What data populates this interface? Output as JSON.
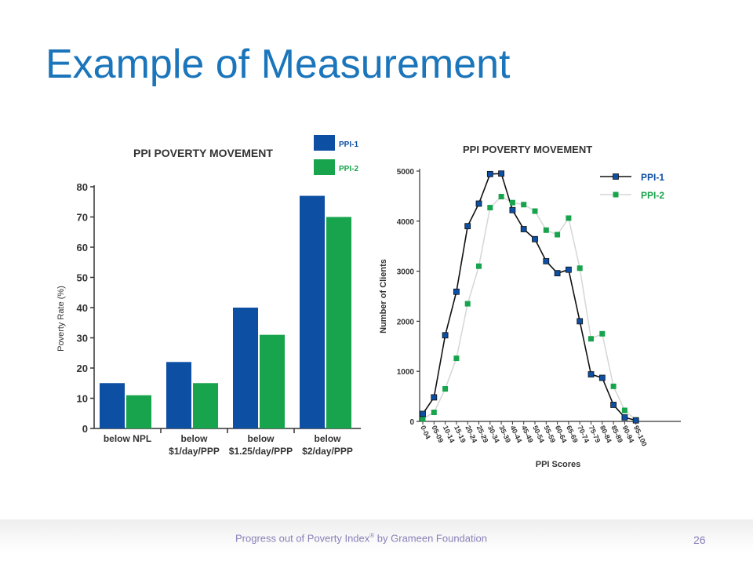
{
  "slide": {
    "title": "Example of Measurement",
    "footer": {
      "prefix": "Progress out of Poverty Index",
      "registered": "®",
      "suffix": " by Grameen Foundation"
    },
    "page_number": "26"
  },
  "colors": {
    "title": "#1b75bb",
    "ppi1": "#0d4fa3",
    "ppi2": "#17a44c",
    "line2": "#d6d6d6",
    "axis": "#333333",
    "footer": "#8a7fb8"
  },
  "chart_data": [
    {
      "type": "bar",
      "title": "PPI POVERTY MOVEMENT",
      "ylabel": "Poverty Rate (%)",
      "xlabel": "",
      "categories": [
        [
          "below NPL"
        ],
        [
          "below",
          "$1/day/PPP"
        ],
        [
          "below",
          "$1.25/day/PPP"
        ],
        [
          "below",
          "$2/day/PPP"
        ]
      ],
      "series": [
        {
          "name": "PPI-1",
          "values": [
            15,
            22,
            40,
            77
          ]
        },
        {
          "name": "PPI-2",
          "values": [
            11,
            15,
            31,
            70
          ]
        }
      ],
      "yticks": [
        "0",
        "10",
        "20",
        "30",
        "40",
        "50",
        "60",
        "70",
        "80"
      ],
      "ylim": [
        0,
        80
      ],
      "grid": false,
      "legend": "top-right"
    },
    {
      "type": "line",
      "title": "PPI POVERTY MOVEMENT",
      "ylabel": "Number of Clients",
      "xlabel": "PPI Scores",
      "categories": [
        "0-04",
        "05-09",
        "10-14",
        "15-19",
        "20-24",
        "25-29",
        "30-34",
        "35-39",
        "40-44",
        "45-49",
        "50-54",
        "55-59",
        "60-64",
        "65-69",
        "70-74",
        "75-79",
        "80-84",
        "85-89",
        "90-94",
        "95-100"
      ],
      "series": [
        {
          "name": "PPI-1",
          "values": [
            150,
            480,
            1720,
            2590,
            3900,
            4350,
            4940,
            4950,
            4220,
            3840,
            3640,
            3200,
            2960,
            3030,
            2000,
            940,
            870,
            330,
            80,
            20
          ]
        },
        {
          "name": "PPI-2",
          "values": [
            50,
            180,
            650,
            1260,
            2350,
            3100,
            4270,
            4490,
            4370,
            4330,
            4200,
            3820,
            3730,
            4060,
            3060,
            1650,
            1750,
            700,
            220,
            30
          ]
        }
      ],
      "yticks": [
        "0",
        "1000",
        "2000",
        "3000",
        "4000",
        "5000"
      ],
      "ylim": [
        0,
        5000
      ],
      "grid": false,
      "legend": "top-right"
    }
  ]
}
